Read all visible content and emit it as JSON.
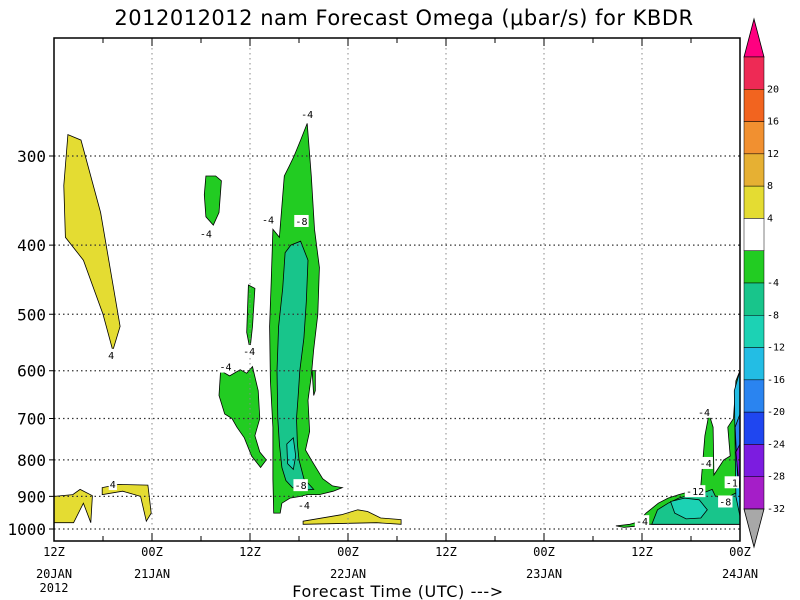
{
  "chart_data": {
    "type": "heatmap",
    "title": "2012012012 nam Forecast Omega (μbar/s) for KBDR",
    "xlabel": "Forecast Time (UTC) --->",
    "x_ticks": [
      {
        "hour": 0,
        "label": "12Z",
        "date": "20JAN",
        "year": "2012"
      },
      {
        "hour": 12,
        "label": "00Z",
        "date": "21JAN"
      },
      {
        "hour": 24,
        "label": "12Z",
        "date": ""
      },
      {
        "hour": 36,
        "label": "00Z",
        "date": "22JAN"
      },
      {
        "hour": 48,
        "label": "12Z",
        "date": ""
      },
      {
        "hour": 60,
        "label": "00Z",
        "date": "23JAN"
      },
      {
        "hour": 72,
        "label": "12Z",
        "date": ""
      },
      {
        "hour": 84,
        "label": "00Z",
        "date": "24JAN"
      }
    ],
    "y_ticks": [
      300,
      400,
      500,
      600,
      700,
      800,
      900,
      1000
    ],
    "xlim": [
      0,
      84
    ],
    "ylim": [
      1000,
      200
    ],
    "y_scale": "log-pressure",
    "grid": true,
    "colorbar": {
      "labels": [
        "20",
        "16",
        "12",
        "8",
        "4",
        "-4",
        "-8",
        "-12",
        "-16",
        "-20",
        "-24",
        "-28",
        "-32"
      ],
      "colors": [
        "#ff0080",
        "#ee2a55",
        "#f2641f",
        "#f19030",
        "#e6b033",
        "#e4dc32",
        "#ffffff",
        "#22cc22",
        "#18c58b",
        "#1cd2b4",
        "#23bde4",
        "#2a84f0",
        "#1f46f0",
        "#7c1ce0",
        "#a51ec8",
        "#a8a8a8"
      ]
    },
    "regions": [
      {
        "level": 4,
        "color": "#e4dc32",
        "points": [
          [
            1.7,
            280
          ],
          [
            3.3,
            285
          ],
          [
            5.7,
            360
          ],
          [
            8.1,
            520
          ],
          [
            7.2,
            562
          ],
          [
            6.0,
            500
          ],
          [
            3.6,
            420
          ],
          [
            1.4,
            390
          ],
          [
            1.2,
            330
          ]
        ]
      },
      {
        "level": 4,
        "color": "#e4dc32",
        "points": [
          [
            0,
            900
          ],
          [
            2.3,
            895
          ],
          [
            3.2,
            880
          ],
          [
            4.7,
            898
          ],
          [
            4.5,
            980
          ],
          [
            3.6,
            920
          ],
          [
            2.4,
            980
          ],
          [
            0,
            980
          ]
        ]
      },
      {
        "level": 4,
        "color": "#e4dc32",
        "points": [
          [
            5.9,
            875
          ],
          [
            7.9,
            866
          ],
          [
            11.5,
            868
          ],
          [
            11.9,
            950
          ],
          [
            11.3,
            975
          ],
          [
            10.6,
            900
          ],
          [
            8.4,
            885
          ],
          [
            5.9,
            895
          ]
        ]
      },
      {
        "level": 4,
        "color": "#e4dc32",
        "points": [
          [
            30.5,
            975
          ],
          [
            35.2,
            955
          ],
          [
            37.2,
            940
          ],
          [
            38.4,
            945
          ],
          [
            40.0,
            965
          ],
          [
            42.5,
            970
          ],
          [
            42.5,
            985
          ],
          [
            39.5,
            980
          ],
          [
            30.5,
            985
          ]
        ]
      },
      {
        "level": -4,
        "color": "#22cc22",
        "points": [
          [
            18.6,
            320
          ],
          [
            19.8,
            320
          ],
          [
            20.5,
            325
          ],
          [
            20.2,
            360
          ],
          [
            19.5,
            375
          ],
          [
            18.6,
            365
          ],
          [
            18.4,
            340
          ]
        ]
      },
      {
        "level": -4,
        "color": "#22cc22",
        "points": [
          [
            23.8,
            455
          ],
          [
            24.6,
            460
          ],
          [
            24.3,
            520
          ],
          [
            24.0,
            560
          ],
          [
            23.6,
            530
          ]
        ]
      },
      {
        "level": -4,
        "color": "#22cc22",
        "points": [
          [
            20.4,
            600
          ],
          [
            21.5,
            610
          ],
          [
            22.8,
            598
          ],
          [
            23.6,
            605
          ],
          [
            24.3,
            592
          ],
          [
            25.0,
            640
          ],
          [
            25.2,
            700
          ],
          [
            24.6,
            740
          ],
          [
            25.2,
            780
          ],
          [
            26.0,
            800
          ],
          [
            25.3,
            820
          ],
          [
            24.2,
            790
          ],
          [
            23.3,
            745
          ],
          [
            22.4,
            720
          ],
          [
            21.8,
            700
          ],
          [
            20.9,
            690
          ],
          [
            20.2,
            650
          ]
        ]
      },
      {
        "level": -4,
        "color": "#22cc22",
        "points": [
          [
            26.8,
            380
          ],
          [
            27.6,
            390
          ],
          [
            28.2,
            320
          ],
          [
            28.8,
            310
          ],
          [
            29.4,
            300
          ],
          [
            30.2,
            285
          ],
          [
            31.0,
            270
          ],
          [
            31.5,
            320
          ],
          [
            31.9,
            380
          ],
          [
            32.5,
            430
          ],
          [
            32.3,
            500
          ],
          [
            31.8,
            560
          ],
          [
            31.5,
            610
          ],
          [
            31.1,
            660
          ],
          [
            31.3,
            730
          ],
          [
            30.8,
            775
          ],
          [
            31.5,
            800
          ],
          [
            32.9,
            850
          ],
          [
            34.1,
            870
          ],
          [
            35.3,
            875
          ],
          [
            34.2,
            885
          ],
          [
            32.5,
            895
          ],
          [
            31.0,
            895
          ],
          [
            30.2,
            900
          ],
          [
            28.9,
            905
          ],
          [
            27.9,
            920
          ],
          [
            27.7,
            950
          ],
          [
            26.9,
            950
          ],
          [
            26.8,
            850
          ],
          [
            26.8,
            720
          ],
          [
            26.5,
            620
          ],
          [
            26.4,
            520
          ],
          [
            26.6,
            450
          ]
        ]
      },
      {
        "level": -4,
        "color": "#22cc22",
        "points": [
          [
            31.6,
            600
          ],
          [
            32.0,
            600
          ],
          [
            32.0,
            640
          ],
          [
            31.8,
            650
          ]
        ]
      },
      {
        "level": -4,
        "color": "#22cc22",
        "points": [
          [
            68.8,
            990
          ],
          [
            70.5,
            985
          ],
          [
            71.8,
            975
          ],
          [
            71.6,
            990
          ],
          [
            69.8,
            995
          ]
        ]
      },
      {
        "level": -4,
        "color": "#22cc22",
        "points": [
          [
            71.6,
            975
          ],
          [
            72.5,
            950
          ],
          [
            74.0,
            920
          ],
          [
            75.2,
            905
          ],
          [
            76.5,
            895
          ],
          [
            78.0,
            885
          ],
          [
            79.2,
            870
          ],
          [
            79.7,
            740
          ],
          [
            80.2,
            690
          ],
          [
            80.7,
            720
          ],
          [
            80.8,
            840
          ],
          [
            82.0,
            800
          ],
          [
            82.8,
            790
          ],
          [
            82.5,
            720
          ],
          [
            83.2,
            700
          ],
          [
            83.5,
            620
          ],
          [
            84.0,
            600
          ],
          [
            84.0,
            985
          ],
          [
            71.6,
            985
          ]
        ]
      },
      {
        "level": -8,
        "color": "#18c58b",
        "points": [
          [
            28.3,
            410
          ],
          [
            29.0,
            400
          ],
          [
            30.2,
            395
          ],
          [
            31.1,
            420
          ],
          [
            30.9,
            480
          ],
          [
            30.6,
            540
          ],
          [
            30.1,
            600
          ],
          [
            29.9,
            650
          ],
          [
            29.7,
            700
          ],
          [
            29.8,
            760
          ],
          [
            30.0,
            800
          ],
          [
            30.6,
            850
          ],
          [
            31.8,
            880
          ],
          [
            30.3,
            882
          ],
          [
            29.2,
            875
          ],
          [
            28.4,
            855
          ],
          [
            27.9,
            820
          ],
          [
            27.6,
            760
          ],
          [
            27.4,
            700
          ],
          [
            27.3,
            600
          ],
          [
            27.5,
            520
          ],
          [
            28.0,
            460
          ]
        ]
      },
      {
        "level": -8,
        "color": "#18c58b",
        "points": [
          [
            73.9,
            940
          ],
          [
            75.2,
            920
          ],
          [
            76.5,
            905
          ],
          [
            78.0,
            895
          ],
          [
            79.5,
            890
          ],
          [
            80.6,
            880
          ],
          [
            81.0,
            900
          ],
          [
            82.3,
            905
          ],
          [
            83.5,
            890
          ],
          [
            84.0,
            870
          ],
          [
            84.0,
            985
          ],
          [
            73.2,
            985
          ]
        ]
      },
      {
        "level": -12,
        "color": "#1cd2b4",
        "points": [
          [
            28.5,
            760
          ],
          [
            29.3,
            745
          ],
          [
            29.6,
            790
          ],
          [
            29.3,
            825
          ],
          [
            28.6,
            810
          ]
        ]
      },
      {
        "level": -12,
        "color": "#1cd2b4",
        "points": [
          [
            75.5,
            915
          ],
          [
            77.2,
            905
          ],
          [
            79.0,
            910
          ],
          [
            80.0,
            940
          ],
          [
            79.2,
            965
          ],
          [
            77.4,
            968
          ],
          [
            76.0,
            950
          ]
        ]
      },
      {
        "level": -16,
        "color": "#23bde4",
        "points": [
          [
            83.3,
            640
          ],
          [
            84.0,
            600
          ],
          [
            84.0,
            960
          ],
          [
            83.5,
            900
          ]
        ]
      },
      {
        "level": -20,
        "color": "#2a84f0",
        "points": [
          [
            83.4,
            720
          ],
          [
            84.0,
            690
          ],
          [
            84.0,
            880
          ],
          [
            83.7,
            840
          ]
        ]
      },
      {
        "level": -28,
        "color": "#7c1ce0",
        "points": [
          [
            83.5,
            780
          ],
          [
            84.0,
            760
          ],
          [
            84.0,
            870
          ],
          [
            83.8,
            850
          ]
        ]
      }
    ],
    "contour_labels": [
      {
        "text": "-4",
        "x": 31.0,
        "y": 262
      },
      {
        "text": "-4",
        "x": 18.6,
        "y": 385
      },
      {
        "text": "-4",
        "x": 26.2,
        "y": 368
      },
      {
        "text": "-8",
        "x": 30.3,
        "y": 370
      },
      {
        "text": "-4",
        "x": 23.9,
        "y": 563
      },
      {
        "text": "-4",
        "x": 21.0,
        "y": 592
      },
      {
        "text": "-8",
        "x": 30.2,
        "y": 868
      },
      {
        "text": "-4",
        "x": 30.6,
        "y": 925
      },
      {
        "text": "4",
        "x": 7.0,
        "y": 570
      },
      {
        "text": "4",
        "x": 7.2,
        "y": 865
      },
      {
        "text": "-4",
        "x": 72.0,
        "y": 975
      },
      {
        "text": "-4",
        "x": 79.6,
        "y": 685
      },
      {
        "text": "-4",
        "x": 79.8,
        "y": 808
      },
      {
        "text": "-12",
        "x": 78.5,
        "y": 885
      },
      {
        "text": "-8",
        "x": 82.2,
        "y": 915
      },
      {
        "text": "-1",
        "x": 83.0,
        "y": 860
      }
    ]
  }
}
